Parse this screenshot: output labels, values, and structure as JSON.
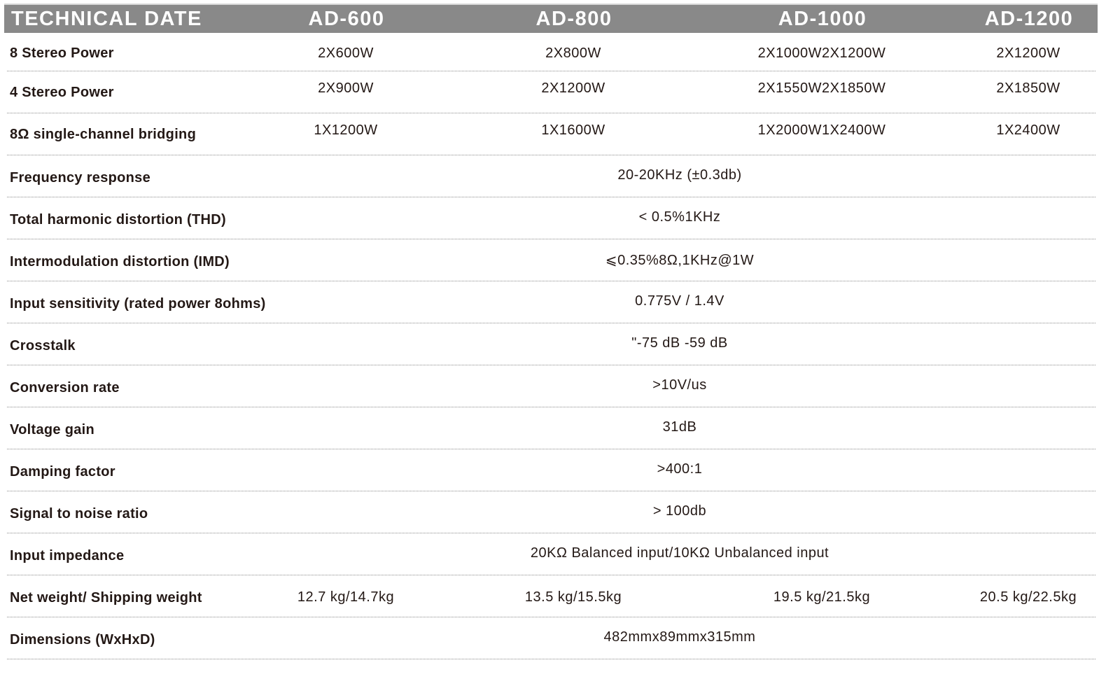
{
  "header": {
    "title": "TECHNICAL DATE",
    "models": [
      "AD-600",
      "AD-800",
      "AD-1000",
      "AD-1200"
    ]
  },
  "rows": [
    {
      "label": "8 Stereo Power",
      "values": [
        "2X600W",
        "2X800W",
        "2X1000W2X1200W",
        "2X1200W"
      ]
    },
    {
      "label": "4 Stereo Power",
      "values": [
        "2X900W",
        "2X1200W",
        "2X1550W2X1850W",
        "2X1850W"
      ]
    },
    {
      "label": "8Ω single-channel bridging",
      "values": [
        "1X1200W",
        "1X1600W",
        "1X2000W1X2400W",
        "1X2400W"
      ]
    },
    {
      "label": "Frequency response",
      "value": "20-20KHz (±0.3db)"
    },
    {
      "label": "Total harmonic distortion (THD)",
      "value": "< 0.5%1KHz"
    },
    {
      "label": "Intermodulation distortion (IMD)",
      "value": "⩽0.35%8Ω,1KHz@1W"
    },
    {
      "label": "Input sensitivity (rated power 8ohms)",
      "value": "0.775V / 1.4V"
    },
    {
      "label": "Crosstalk",
      "value": "\"-75 dB -59 dB"
    },
    {
      "label": "Conversion rate",
      "value": ">10V/us"
    },
    {
      "label": "Voltage gain",
      "value": "31dB"
    },
    {
      "label": "Damping factor",
      "value": ">400:1"
    },
    {
      "label": "Signal to noise ratio",
      "value": "> 100db"
    },
    {
      "label": "Input impedance",
      "value": "20KΩ Balanced input/10KΩ Unbalanced input"
    },
    {
      "label": "Net weight/ Shipping weight",
      "values": [
        "12.7 kg/14.7kg",
        "13.5 kg/15.5kg",
        "19.5 kg/21.5kg",
        "20.5 kg/22.5kg"
      ]
    },
    {
      "label": "Dimensions (WxHxD)",
      "value": "482mmx89mmx315mm"
    }
  ]
}
